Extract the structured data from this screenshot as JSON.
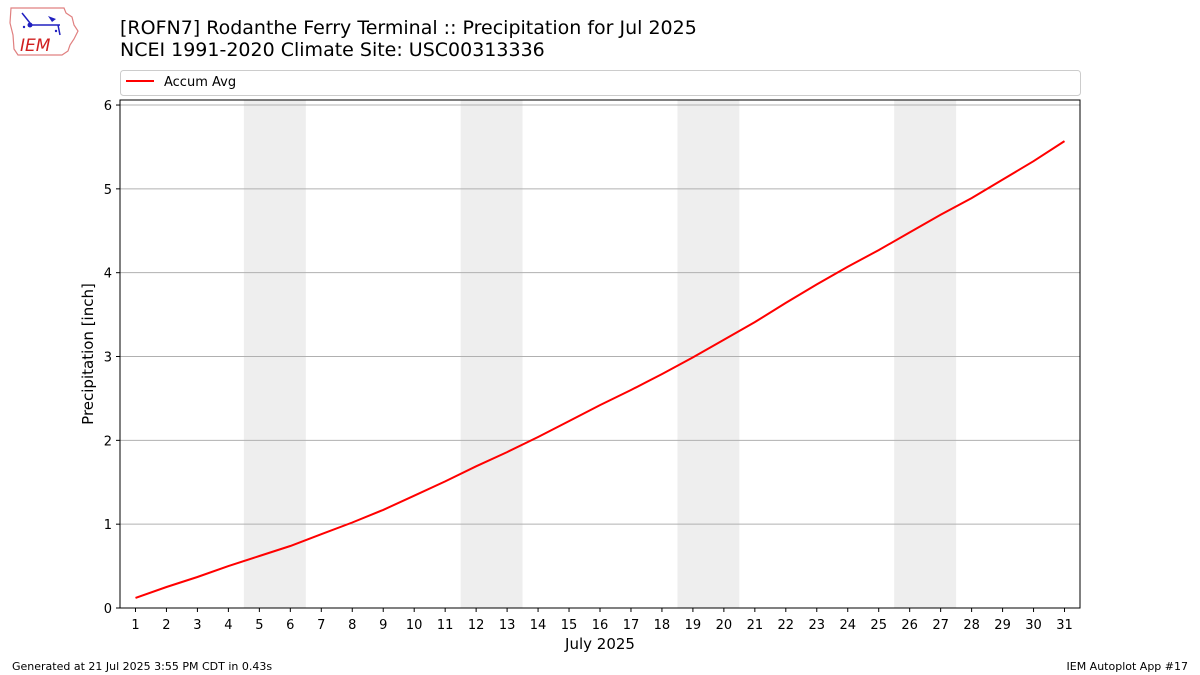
{
  "logo": {
    "text": "IEM"
  },
  "header": {
    "title_line1": "[ROFN7] Rodanthe Ferry Terminal :: Precipitation for Jul 2025",
    "title_line2": "NCEI 1991-2020 Climate Site: USC00313336"
  },
  "footer": {
    "generated": "Generated at 21 Jul 2025 3:55 PM CDT in 0.43s",
    "app": "IEM Autoplot App #17"
  },
  "colors": {
    "line": "#ff0000",
    "weekend_band": "#eeeeee",
    "grid": "#b0b0b0"
  },
  "chart_data": {
    "type": "line",
    "xlabel": "July 2025",
    "ylabel": "Precipitation [inch]",
    "ylim": [
      0,
      6.06
    ],
    "xlim": [
      0.5,
      31.5
    ],
    "grid": "horizontal",
    "legend_position": "top",
    "x": [
      1,
      2,
      3,
      4,
      5,
      6,
      7,
      8,
      9,
      10,
      11,
      12,
      13,
      14,
      15,
      16,
      17,
      18,
      19,
      20,
      21,
      22,
      23,
      24,
      25,
      26,
      27,
      28,
      29,
      30,
      31
    ],
    "xticks": [
      "1",
      "2",
      "3",
      "4",
      "5",
      "6",
      "7",
      "8",
      "9",
      "10",
      "11",
      "12",
      "13",
      "14",
      "15",
      "16",
      "17",
      "18",
      "19",
      "20",
      "21",
      "22",
      "23",
      "24",
      "25",
      "26",
      "27",
      "28",
      "29",
      "30",
      "31"
    ],
    "yticks": [
      "0",
      "1",
      "2",
      "3",
      "4",
      "5",
      "6"
    ],
    "weekend_bands": [
      [
        4.5,
        6.5
      ],
      [
        11.5,
        13.5
      ],
      [
        18.5,
        20.5
      ],
      [
        25.5,
        27.5
      ]
    ],
    "series": [
      {
        "name": "Accum Avg",
        "color": "#ff0000",
        "values": [
          0.12,
          0.25,
          0.37,
          0.5,
          0.62,
          0.74,
          0.88,
          1.02,
          1.17,
          1.34,
          1.51,
          1.69,
          1.86,
          2.04,
          2.23,
          2.42,
          2.6,
          2.79,
          2.99,
          3.2,
          3.41,
          3.64,
          3.86,
          4.07,
          4.27,
          4.48,
          4.69,
          4.89,
          5.11,
          5.33,
          5.57
        ]
      }
    ]
  }
}
